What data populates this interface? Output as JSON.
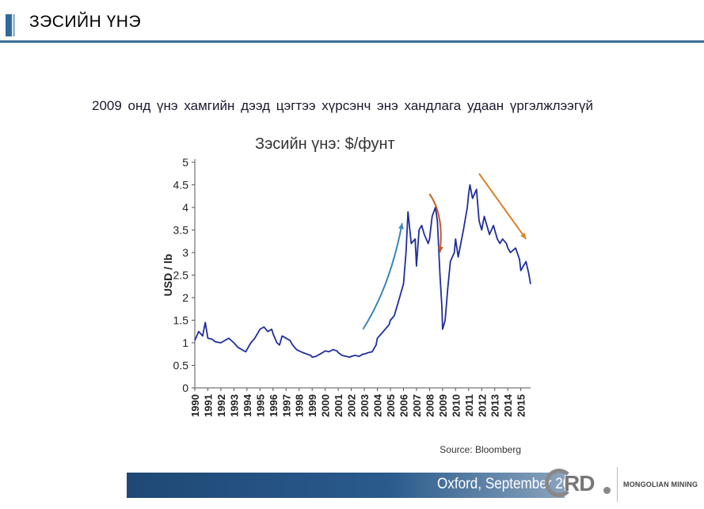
{
  "header": {
    "title": "ЗЭСИЙН ҮНЭ"
  },
  "subtitle": "2009 онд үнэ хамгийн дээд цэгтээ хүрсэнч энэ хандлага удаан үргэлжлээгүй",
  "footer": {
    "text": "Oxford, September 2015",
    "logo_text": "RD",
    "brand": "MONGOLIAN MINING"
  },
  "chart_data": {
    "type": "line",
    "title": "Зэсийн үнэ: $/фунт",
    "ylabel": "USD / lb",
    "xlabel": "",
    "source": "Source: Bloomberg",
    "ylim": [
      0,
      5
    ],
    "xlim": [
      1990,
      2015.75
    ],
    "yticks": [
      "0",
      "0.5",
      "1",
      "1.5",
      "2",
      "2.5",
      "3",
      "3.5",
      "4",
      "4.5",
      "5"
    ],
    "xticks": [
      "1990",
      "1991",
      "1992",
      "1993",
      "1994",
      "1995",
      "1996",
      "1997",
      "1998",
      "1999",
      "2000",
      "2001",
      "2002",
      "2003",
      "2004",
      "2005",
      "2006",
      "2007",
      "2008",
      "2009",
      "2010",
      "2011",
      "2012",
      "2013",
      "2014",
      "2015"
    ],
    "grid": false,
    "legend": "none",
    "series": [
      {
        "color": "#1f2d9e",
        "x": [
          1990.0,
          1990.3,
          1990.6,
          1990.8,
          1991.0,
          1991.3,
          1991.6,
          1992.0,
          1992.3,
          1992.6,
          1993.0,
          1993.3,
          1993.6,
          1993.9,
          1994.0,
          1994.3,
          1994.6,
          1994.9,
          1995.0,
          1995.3,
          1995.6,
          1995.9,
          1996.0,
          1996.3,
          1996.5,
          1996.7,
          1997.0,
          1997.3,
          1997.5,
          1997.8,
          1998.0,
          1998.3,
          1998.6,
          1998.9,
          1999.0,
          1999.3,
          1999.6,
          1999.9,
          2000.0,
          2000.3,
          2000.6,
          2000.9,
          2001.0,
          2001.3,
          2001.6,
          2001.9,
          2002.0,
          2002.3,
          2002.6,
          2002.9,
          2003.0,
          2003.3,
          2003.6,
          2003.9,
          2004.0,
          2004.3,
          2004.6,
          2004.9,
          2005.0,
          2005.3,
          2005.6,
          2005.9,
          2006.0,
          2006.2,
          2006.35,
          2006.6,
          2006.9,
          2007.0,
          2007.2,
          2007.4,
          2007.6,
          2007.9,
          2008.0,
          2008.2,
          2008.45,
          2008.6,
          2008.8,
          2008.95,
          2009.0,
          2009.2,
          2009.4,
          2009.6,
          2009.9,
          2010.0,
          2010.2,
          2010.4,
          2010.6,
          2010.9,
          2011.0,
          2011.1,
          2011.3,
          2011.6,
          2011.8,
          2012.0,
          2012.2,
          2012.4,
          2012.6,
          2012.9,
          2013.0,
          2013.2,
          2013.4,
          2013.6,
          2013.9,
          2014.0,
          2014.2,
          2014.4,
          2014.6,
          2014.9,
          2015.0,
          2015.2,
          2015.4,
          2015.6,
          2015.75
        ],
        "y": [
          1.05,
          1.25,
          1.15,
          1.45,
          1.1,
          1.08,
          1.02,
          1.0,
          1.05,
          1.1,
          1.0,
          0.9,
          0.85,
          0.8,
          0.85,
          1.0,
          1.1,
          1.25,
          1.3,
          1.35,
          1.25,
          1.3,
          1.2,
          1.0,
          0.95,
          1.15,
          1.1,
          1.05,
          0.95,
          0.85,
          0.82,
          0.78,
          0.75,
          0.72,
          0.68,
          0.7,
          0.75,
          0.8,
          0.82,
          0.8,
          0.85,
          0.82,
          0.78,
          0.72,
          0.7,
          0.68,
          0.7,
          0.72,
          0.7,
          0.75,
          0.75,
          0.78,
          0.8,
          0.95,
          1.1,
          1.2,
          1.3,
          1.4,
          1.5,
          1.6,
          1.9,
          2.2,
          2.3,
          3.0,
          3.9,
          3.2,
          3.3,
          2.7,
          3.5,
          3.6,
          3.4,
          3.2,
          3.3,
          3.8,
          4.0,
          3.7,
          2.5,
          1.8,
          1.3,
          1.5,
          2.2,
          2.8,
          3.0,
          3.3,
          2.9,
          3.2,
          3.5,
          4.0,
          4.3,
          4.5,
          4.2,
          4.4,
          3.7,
          3.5,
          3.8,
          3.6,
          3.4,
          3.6,
          3.5,
          3.3,
          3.2,
          3.3,
          3.2,
          3.1,
          3.0,
          3.05,
          3.1,
          2.85,
          2.6,
          2.7,
          2.8,
          2.55,
          2.3
        ]
      }
    ],
    "annotations": [
      {
        "type": "arrow",
        "color": "#3a86b8",
        "from": [
          2002.9,
          1.3
        ],
        "to": [
          2005.9,
          3.65
        ]
      },
      {
        "type": "arrow",
        "color": "#c85a26",
        "from": [
          2008.0,
          4.3
        ],
        "to": [
          2008.8,
          3.0
        ]
      },
      {
        "type": "arrow",
        "color": "#d9822b",
        "from": [
          2011.8,
          4.75
        ],
        "to": [
          2015.4,
          3.3
        ]
      }
    ]
  }
}
